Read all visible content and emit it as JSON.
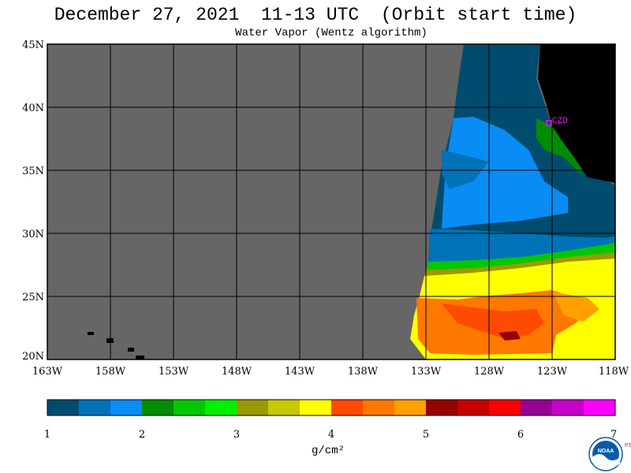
{
  "title": "December 27, 2021  11-13 UTC  (Orbit start time)",
  "subtitle": "Water Vapor (Wentz algorithm)",
  "map": {
    "lat_labels": [
      "45N",
      "40N",
      "35N",
      "30N",
      "25N",
      "20N"
    ],
    "lon_labels": [
      "163W",
      "158W",
      "153W",
      "148W",
      "143W",
      "138W",
      "133W",
      "128W",
      "123W",
      "118W"
    ],
    "station_label": "CZD",
    "land_color": "#000000",
    "nodata_color": "#666666"
  },
  "colorbar": {
    "label": "g/cm²",
    "ticks": [
      "1",
      "2",
      "3",
      "4",
      "5",
      "6",
      "7"
    ],
    "colors": [
      "#004c6e",
      "#0072b8",
      "#0a8cf5",
      "#008c00",
      "#00c800",
      "#00f000",
      "#9a9a00",
      "#c8c800",
      "#ffff00",
      "#ff4b00",
      "#ff7800",
      "#ffa000",
      "#960000",
      "#c80000",
      "#fa0000",
      "#960096",
      "#c800c8",
      "#ff00ff"
    ]
  },
  "logo": {
    "text": "NOAA",
    "side_text": "PSL"
  }
}
